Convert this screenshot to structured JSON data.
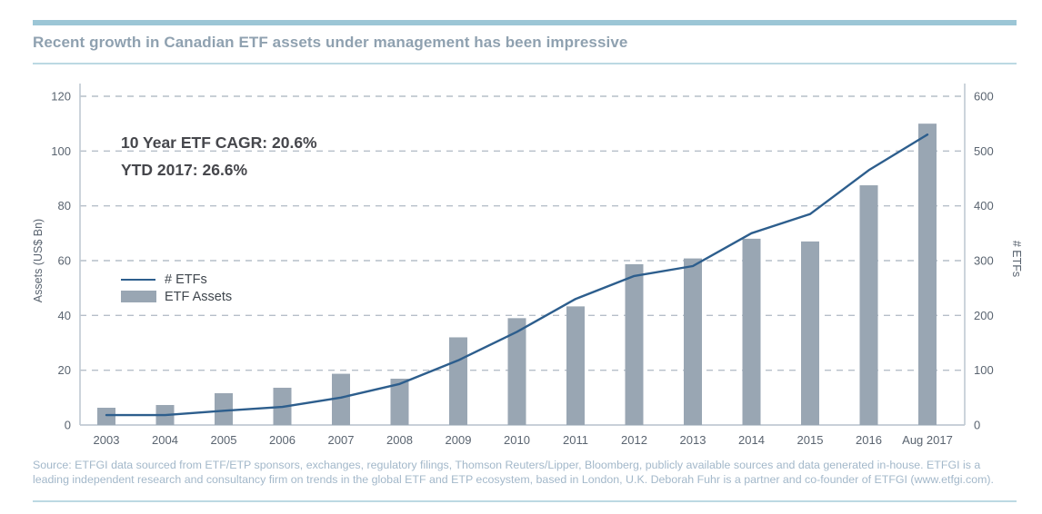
{
  "header": {
    "title": "Recent growth in Canadian ETF assets under management has been impressive"
  },
  "annotation": {
    "line1": "10 Year ETF CAGR: 20.6%",
    "line2": "YTD 2017: 26.6%"
  },
  "legend": {
    "items": [
      {
        "label": "# ETFs",
        "swatch": "line"
      },
      {
        "label": "ETF Assets",
        "swatch": "bar"
      }
    ]
  },
  "footer": {
    "source": "Source: ETFGI data sourced from ETF/ETP sponsors, exchanges, regulatory filings, Thomson Reuters/Lipper, Bloomberg, publicly available sources and data generated in-house. ETFGI is a leading independent research and consultancy firm on trends in the global ETF and ETP ecosystem, based in London, U.K. Deborah Fuhr is a partner and co-founder of ETFGI (www.etfgi.com)."
  },
  "colors": {
    "accent_bar": "#9cc6d6",
    "thin_rule": "#bcd9e3",
    "title_text": "#8fa1b0",
    "bar_fill": "#99a6b3",
    "line_stroke": "#2d5e8d",
    "grid": "#b6bfc9",
    "axis": "#c0c9d2",
    "tick_text": "#5a6470",
    "annotation_text": "#46474c",
    "legend_text": "#3f464d",
    "footer_text": "#a3b8ca"
  },
  "chart_data": {
    "type": "bar",
    "subtype": "bar+line combo, dual axis",
    "categories": [
      "2003",
      "2004",
      "2005",
      "2006",
      "2007",
      "2008",
      "2009",
      "2010",
      "2011",
      "2012",
      "2013",
      "2014",
      "2015",
      "2016",
      "Aug 2017"
    ],
    "series": [
      {
        "name": "ETF Assets",
        "type": "bar",
        "axis": "left",
        "values": [
          6.3,
          7.3,
          11.6,
          13.6,
          18.7,
          16.9,
          32,
          39,
          43.3,
          58.7,
          60.8,
          68,
          67,
          87.5,
          110
        ]
      },
      {
        "name": "# ETFs",
        "type": "line",
        "axis": "right",
        "values": [
          18,
          18,
          26,
          33,
          50,
          75,
          118,
          170,
          230,
          272,
          290,
          350,
          385,
          465,
          530
        ]
      }
    ],
    "left_axis": {
      "label": "Assets (US$ Bn)",
      "min": 0,
      "max": 120,
      "ticks": [
        0,
        20,
        40,
        60,
        80,
        100,
        120
      ]
    },
    "right_axis": {
      "label": "# ETFs",
      "min": 0,
      "max": 600,
      "ticks": [
        0,
        100,
        200,
        300,
        400,
        500,
        600
      ]
    },
    "grid": "dashed horizontal gridlines at every left-axis tick above 0",
    "legend_position": "inside plot, upper-left of lower area"
  }
}
